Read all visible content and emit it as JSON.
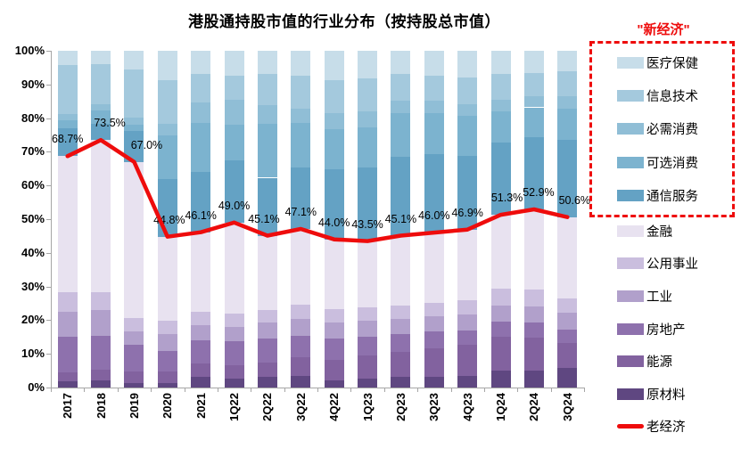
{
  "chart": {
    "title": "港股通持股市值的行业分布（按持股总市值）",
    "new_economy_label": "\"新经济\"",
    "accent_red": "#ee0c0c",
    "axis_color": "#a6a6a6",
    "text_color": "#000000"
  },
  "chart_data": {
    "type": "bar",
    "stacked": true,
    "title": "港股通持股市值的行业分布（按持股总市值）",
    "xlabel": "",
    "ylabel": "",
    "ylim": [
      0,
      100
    ],
    "ytick_labels": [
      "0%",
      "10%",
      "20%",
      "30%",
      "40%",
      "50%",
      "60%",
      "70%",
      "80%",
      "90%",
      "100%"
    ],
    "grid": false,
    "legend_position": "right",
    "legend_group_new_economy": [
      "医疗保健",
      "信息技术",
      "必需消费",
      "可选消费",
      "通信服务"
    ],
    "legend_group_old_economy": [
      "金融",
      "公用事业",
      "工业",
      "房地产",
      "能源",
      "原材料"
    ],
    "categories": [
      "2017",
      "2018",
      "2019",
      "2020",
      "2021",
      "1Q22",
      "2Q22",
      "3Q22",
      "4Q22",
      "1Q23",
      "2Q23",
      "3Q23",
      "4Q23",
      "1Q24",
      "2Q24",
      "3Q24"
    ],
    "series": [
      {
        "name": "原材料",
        "color": "#5f4781",
        "values": [
          1.8,
          2.2,
          1.3,
          1.3,
          3.1,
          2.6,
          3.1,
          3.4,
          2.2,
          2.6,
          3.1,
          3.1,
          3.4,
          5.0,
          5.0,
          5.7
        ]
      },
      {
        "name": "能源",
        "color": "#82629f",
        "values": [
          2.6,
          3.1,
          3.5,
          3.4,
          4.0,
          4.0,
          4.4,
          5.5,
          6.0,
          6.9,
          7.6,
          8.6,
          9.3,
          10.0,
          9.9,
          7.6
        ]
      },
      {
        "name": "房地产",
        "color": "#8e71ad",
        "values": [
          10.6,
          10.1,
          7.9,
          6.2,
          7.0,
          7.1,
          7.1,
          6.5,
          6.4,
          5.5,
          5.2,
          5.0,
          4.3,
          4.5,
          4.4,
          3.9
        ]
      },
      {
        "name": "工业",
        "color": "#b1a0cb",
        "values": [
          7.5,
          7.6,
          4.0,
          4.9,
          4.4,
          4.4,
          4.8,
          4.9,
          4.8,
          4.8,
          4.4,
          4.4,
          4.6,
          4.8,
          4.9,
          4.9
        ]
      },
      {
        "name": "公用事业",
        "color": "#cabede",
        "values": [
          5.7,
          5.3,
          4.0,
          4.0,
          4.0,
          3.9,
          3.5,
          4.4,
          4.0,
          4.0,
          4.0,
          4.0,
          4.4,
          5.0,
          4.9,
          4.4
        ]
      },
      {
        "name": "金融",
        "color": "#e8e2f0",
        "values": [
          40.5,
          45.2,
          46.3,
          25.0,
          23.6,
          27.0,
          22.2,
          22.4,
          20.6,
          19.7,
          20.8,
          20.9,
          20.9,
          22.0,
          23.8,
          24.1
        ]
      },
      {
        "name": "通信服务",
        "color": "#64a2c4",
        "values": [
          8.4,
          4.9,
          9.3,
          17.0,
          17.9,
          18.5,
          17.2,
          18.2,
          20.8,
          21.8,
          23.3,
          23.2,
          21.9,
          21.5,
          21.5,
          23.0
        ]
      },
      {
        "name": "可选消费",
        "color": "#7cb3cf",
        "values": [
          2.3,
          3.9,
          1.7,
          13.0,
          14.5,
          10.5,
          16.0,
          13.2,
          11.9,
          11.9,
          13.2,
          12.4,
          11.9,
          9.2,
          8.8,
          9.3
        ]
      },
      {
        "name": "必需消费",
        "color": "#90bed6",
        "values": [
          1.7,
          1.9,
          2.2,
          3.5,
          6.2,
          7.5,
          5.5,
          4.4,
          4.9,
          4.8,
          3.7,
          3.5,
          3.5,
          3.5,
          3.4,
          3.5
        ]
      },
      {
        "name": "信息技术",
        "color": "#a4c9dd",
        "values": [
          14.6,
          11.9,
          14.2,
          13.0,
          8.3,
          7.1,
          9.2,
          9.7,
          9.7,
          9.7,
          7.7,
          7.5,
          7.9,
          7.5,
          6.9,
          7.5
        ]
      },
      {
        "name": "医疗保健",
        "color": "#c7dde9",
        "values": [
          4.3,
          3.9,
          5.6,
          8.7,
          7.0,
          7.4,
          7.0,
          7.4,
          8.7,
          8.3,
          7.0,
          7.4,
          7.9,
          7.0,
          6.5,
          6.1
        ]
      }
    ],
    "line_series": {
      "name": "老经济",
      "color": "#ee0c0c",
      "values": [
        68.7,
        73.5,
        67.0,
        44.8,
        46.1,
        49.0,
        45.1,
        47.1,
        44.0,
        43.5,
        45.1,
        46.0,
        46.9,
        51.3,
        52.9,
        50.6
      ],
      "labels": [
        "68.7%",
        "73.5%",
        "67.0%",
        "44.8%",
        "46.1%",
        "49.0%",
        "45.1%",
        "47.1%",
        "44.0%",
        "43.5%",
        "45.1%",
        "46.0%",
        "46.9%",
        "51.3%",
        "52.9%",
        "50.6%"
      ]
    }
  }
}
